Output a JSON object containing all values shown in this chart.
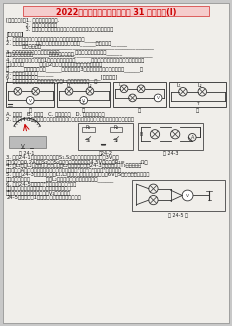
{
  "title": "2022年中考物理一輪專題復習 31 電壓學案(I)",
  "title_color": "#cc0000",
  "bg_color": "#c8c8c8",
  "paper_color": "#f0eeea",
  "text_color": "#2a2a2a",
  "light_text": "#444444",
  "line1": "[中考要求]：1. 知道電壓及其單位.",
  "line2": "            2. 認識常見的電壓值",
  "line3": "            3. 理解串聯、并聯電路的電壓規律、會正確使用電壓表測電壓",
  "line4": "[知識回顧]",
  "kn1": "1. 電源在電路中充分移動形成電流時、電源兩端需有有______",
  "kn2": "2. 電壓用字母___表示，在國際單位制中主單位是______，其他還有______",
  "kn2b": "          ，換算關系是___________________________________________",
  "kn3": "3. 記住電壓值：一節干電池的電壓是______，一節蓄電池的電壓是______",
  "kn3b": "我國照明電路電壓是______；對人體安全電壓______________________________",
  "kn4": "4. 電壓表的使用說明：（1）電壓表與被測電路______聯、要測哪部分電路的電壓，電壓表就",
  "kn4b": "測哪部分電路______聯；（2）電壓表接進電路時、應當電電流從",
  "kn4c": "其______接線柱進入，從______接線柱出。（3）被測電壓不能超過電壓表的______。",
  "kn5": "5. 串聯電路電壓關系______",
  "kn6": "6. 并聯電路電壓關系________________________[精選練習]",
  "q1": "1. 如下圖所示，根據電壓表的示數判斷L₁兩端電壓的是（   ）",
  "ans": "A. 只有甲   B. 甲和乙   C. 甲、乙和丙   D. 甲、乙、丙和丁",
  "q2": "2. 如圖24-1所示是用電壓表測一組電池的電壓的實驗，此時電池組兩端電壓的測量值是",
  "q3a": "3. 如圖24-1，电源電壓不變，當S₁,S₂均斷開時，電壓表示數為3V，電",
  "q3b": "源電壓示數為0.2A，當S₁斷開 S₂閉合時，電壓表示數為4.5V，則此時R₂=______Ω。",
  "q4a": "4. 燈L₁與燈L₂并聯，先用電壓表測燈L₂兩端有伏，按圖24-3所示，接測燈T₁兩端有伏，",
  "q4b": "則測電壓表A的一個導線成換了，這種換法，（選填\"正確\"或\"不正確\"），理由是______",
  "q5a": "5. 如上圖24-3所示電路中，當L₁,L₂兩燈的電路相同，有電源電壓6V，S閉合后，兩燈均亮，",
  "q5b": "同亮時電壓表示為______；如L₂燈突然斷路，則電壓表示數為______",
  "q6a": "6. 如圖24-5甲所示是\"用電壓表測電壓\"的實",
  "q6b": "驗電路，下表是某同學在實驗中得到的三組測量",
  "q6c": "數據，其中第三次實驗時電壓表V₂的示數如圖",
  "q6d": "24-5乙所示，（1）把電壓表的示數填入表中空格",
  "fig245": "圖 24-5 甲"
}
